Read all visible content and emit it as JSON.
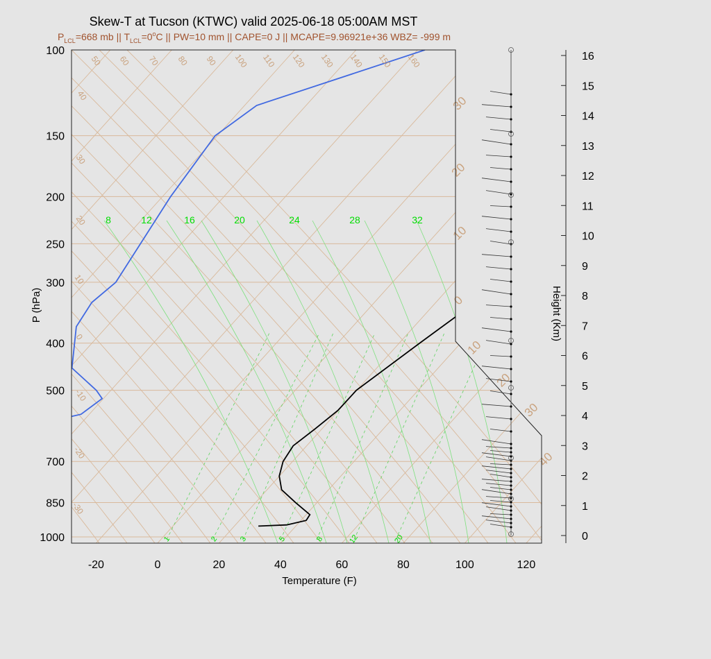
{
  "title": "Skew-T at Tucson (KTWC) valid 2025-06-18 05:00AM MST",
  "subtitle": {
    "plcl_sym": "P",
    "plcl_sub": "LCL",
    "plcl_val": "=668 mb || ",
    "tlcl_sym": "T",
    "tlcl_sub": "LCL",
    "tlcl_val": "=0",
    "deg": "o",
    "rest": "C || PW=10 mm || CAPE=0 J || MCAPE=9.96921e+36 WBZ= -999 m"
  },
  "chart_data": {
    "type": "line",
    "title": "Skew-T at Tucson (KTWC) valid 2025-06-18 05:00AM MST",
    "xlabel": "Temperature (F)",
    "ylabel": "P (hPa)",
    "y2label": "Height (Km)",
    "xlim": [
      -28,
      97
    ],
    "ylim_hpa": [
      1030,
      100
    ],
    "y_scale": "log",
    "x_ticks": [
      "-20",
      "0",
      "20",
      "40",
      "60",
      "80",
      "100",
      "120"
    ],
    "y_ticks": [
      "100",
      "150",
      "200",
      "250",
      "300",
      "400",
      "500",
      "700",
      "850",
      "1000"
    ],
    "height_ticks": [
      "0",
      "1",
      "2",
      "3",
      "4",
      "5",
      "6",
      "7",
      "8",
      "9",
      "10",
      "11",
      "12",
      "13",
      "14",
      "15",
      "16"
    ],
    "mixing_ratio_top_labels": [
      "8",
      "12",
      "16",
      "20",
      "24",
      "28",
      "32"
    ],
    "mixing_ratio_bottom_labels": [
      "1",
      "2",
      "3",
      "5",
      "8",
      "12",
      "20"
    ],
    "adiabat_labels": [
      "-30",
      "-20",
      "-10",
      "0",
      "10",
      "20",
      "30",
      "40",
      "50",
      "60",
      "70",
      "80",
      "90",
      "100",
      "110",
      "120",
      "130",
      "140",
      "150",
      "160"
    ],
    "isotherm_labels": [
      "30",
      "20",
      "10",
      "0",
      "10",
      "20",
      "30",
      "40"
    ],
    "series": [
      {
        "role": "temperature",
        "color": "#000000",
        "points": [
          [
            100,
            46
          ],
          [
            135,
            31
          ],
          [
            175,
            23
          ],
          [
            200,
            21
          ],
          [
            250,
            18
          ],
          [
            300,
            14
          ],
          [
            400,
            6
          ],
          [
            500,
            0
          ],
          [
            550,
            -1
          ],
          [
            600,
            -3
          ],
          [
            650,
            -5
          ],
          [
            700,
            -5
          ],
          [
            750,
            -4
          ],
          [
            800,
            -2
          ],
          [
            850,
            2
          ],
          [
            900,
            6
          ],
          [
            925,
            6
          ],
          [
            945,
            3
          ],
          [
            950,
            -2
          ]
        ]
      },
      {
        "role": "dewpoint",
        "color": "#4169e1",
        "points": [
          [
            100,
            -27
          ],
          [
            130,
            -51
          ],
          [
            150,
            -55
          ],
          [
            200,
            -56
          ],
          [
            300,
            -56
          ],
          [
            330,
            -58
          ],
          [
            370,
            -58
          ],
          [
            450,
            -54
          ],
          [
            500,
            -47
          ],
          [
            520,
            -45
          ],
          [
            560,
            -47
          ],
          [
            600,
            -57
          ],
          [
            620,
            -60
          ],
          [
            640,
            -59
          ],
          [
            680,
            -56
          ],
          [
            720,
            -58
          ],
          [
            760,
            -52
          ],
          [
            790,
            -54
          ],
          [
            820,
            -54
          ],
          [
            860,
            -52
          ],
          [
            890,
            -52
          ],
          [
            910,
            -53
          ],
          [
            930,
            -52
          ],
          [
            945,
            -51
          ]
        ]
      }
    ]
  }
}
